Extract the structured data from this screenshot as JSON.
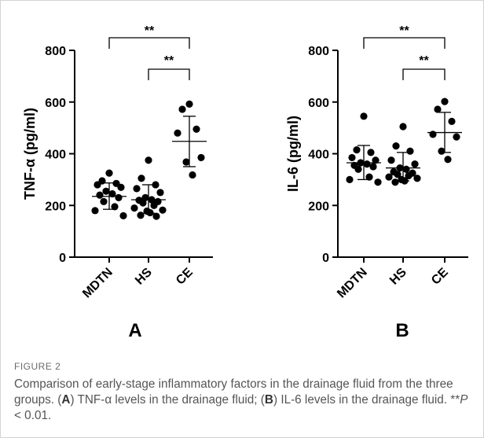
{
  "colors": {
    "points": "#000000",
    "caption": "#555555",
    "frame": "#d3d3d3"
  },
  "chart_data": [
    {
      "panel": "A",
      "type": "scatter",
      "ylabel": "TNF-α (pg/ml)",
      "ylim": [
        0,
        800
      ],
      "yticks": [
        0,
        200,
        400,
        600,
        800
      ],
      "categories": [
        "MDTN",
        "HS",
        "CE"
      ],
      "groups": [
        {
          "category": "MDTN",
          "mean": 235,
          "sd_low": 185,
          "sd_high": 287,
          "points": [
            325,
            295,
            285,
            280,
            270,
            255,
            245,
            240,
            230,
            215,
            195,
            180,
            160
          ]
        },
        {
          "category": "HS",
          "mean": 222,
          "sd_low": 170,
          "sd_high": 280,
          "points": [
            375,
            305,
            280,
            265,
            250,
            230,
            222,
            220,
            215,
            210,
            200,
            190,
            182,
            178,
            172,
            162,
            158
          ]
        },
        {
          "category": "CE",
          "mean": 448,
          "sd_low": 350,
          "sd_high": 545,
          "points": [
            592,
            572,
            495,
            480,
            385,
            368,
            318
          ]
        }
      ],
      "significance": [
        {
          "from": "MDTN",
          "to": "CE",
          "label": "**"
        },
        {
          "from": "HS",
          "to": "CE",
          "label": "**"
        }
      ]
    },
    {
      "panel": "B",
      "type": "scatter",
      "ylabel": "IL-6 (pg/ml)",
      "ylim": [
        0,
        800
      ],
      "yticks": [
        0,
        200,
        400,
        600,
        800
      ],
      "categories": [
        "MDTN",
        "HS",
        "CE"
      ],
      "groups": [
        {
          "category": "MDTN",
          "mean": 365,
          "sd_low": 300,
          "sd_high": 432,
          "points": [
            545,
            415,
            405,
            385,
            375,
            365,
            360,
            355,
            350,
            340,
            310,
            300,
            290
          ]
        },
        {
          "category": "HS",
          "mean": 345,
          "sd_low": 295,
          "sd_high": 405,
          "points": [
            505,
            430,
            410,
            375,
            360,
            345,
            340,
            330,
            325,
            320,
            315,
            310,
            305,
            300,
            295,
            290
          ]
        },
        {
          "category": "CE",
          "mean": 482,
          "sd_low": 405,
          "sd_high": 560,
          "points": [
            602,
            572,
            525,
            475,
            465,
            410,
            378
          ]
        }
      ],
      "significance": [
        {
          "from": "MDTN",
          "to": "CE",
          "label": "**"
        },
        {
          "from": "HS",
          "to": "CE",
          "label": "**"
        }
      ]
    }
  ],
  "caption": {
    "label": "FIGURE 2",
    "text_1": "Comparison of early-stage inflammatory factors in the drainage fluid from the three groups. (",
    "panel_a": "A",
    "text_2": ") TNF-α levels in the drainage fluid; (",
    "panel_b": "B",
    "text_3": ") IL-6 levels in the drainage fluid. **",
    "p_symbol": "P",
    "text_4": " < 0.01."
  }
}
